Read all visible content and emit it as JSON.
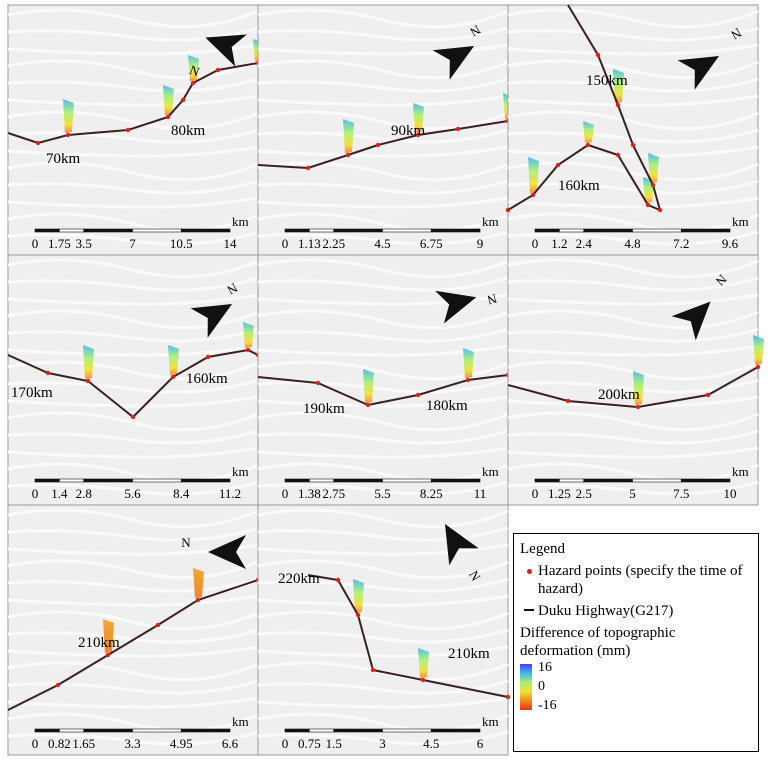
{
  "panels": [
    {
      "km_labels": [
        "70km",
        "80km"
      ],
      "north": "N",
      "scale": {
        "unit": "km",
        "labels": [
          "0",
          "1.75",
          "3.5",
          "7",
          "10.5",
          "14"
        ]
      }
    },
    {
      "km_labels": [
        "90km"
      ],
      "north": "N",
      "scale": {
        "unit": "km",
        "labels": [
          "0",
          "1.13",
          "2.25",
          "4.5",
          "6.75",
          "9"
        ]
      }
    },
    {
      "km_labels": [
        "150km",
        "160km"
      ],
      "north": "N",
      "scale": {
        "unit": "km",
        "labels": [
          "0",
          "1.2",
          "2.4",
          "4.8",
          "7.2",
          "9.6"
        ]
      }
    },
    {
      "km_labels": [
        "170km",
        "160km"
      ],
      "north": "N",
      "scale": {
        "unit": "km",
        "labels": [
          "0",
          "1.4",
          "2.8",
          "5.6",
          "8.4",
          "11.2"
        ]
      }
    },
    {
      "km_labels": [
        "190km",
        "180km"
      ],
      "north": "N",
      "scale": {
        "unit": "km",
        "labels": [
          "0",
          "1.38",
          "2.75",
          "5.5",
          "8.25",
          "11"
        ]
      }
    },
    {
      "km_labels": [
        "200km"
      ],
      "north": "N",
      "scale": {
        "unit": "km",
        "labels": [
          "0",
          "1.25",
          "2.5",
          "5",
          "7.5",
          "10"
        ]
      }
    },
    {
      "km_labels": [
        "210km"
      ],
      "north": "N",
      "scale": {
        "unit": "km",
        "labels": [
          "0",
          "0.82",
          "1.65",
          "3.3",
          "4.95",
          "6.6"
        ]
      }
    },
    {
      "km_labels": [
        "220km",
        "210km"
      ],
      "north": "N",
      "scale": {
        "unit": "km",
        "labels": [
          "0",
          "0.75",
          "1.5",
          "3",
          "4.5",
          "6"
        ]
      }
    }
  ],
  "legend": {
    "title": "Legend",
    "items": [
      "Hazard points (specify the time of hazard)",
      "Duku Highway(G217)"
    ],
    "colorbar_title": "Difference of topographic deformation (mm)",
    "colorbar_ticks": [
      "16",
      "0",
      "-16"
    ]
  }
}
